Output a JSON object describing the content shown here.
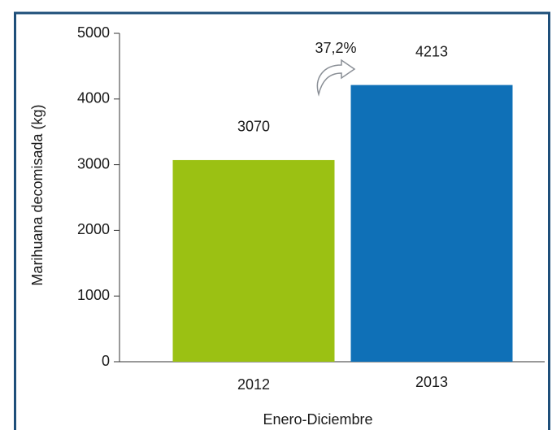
{
  "chart_data": {
    "type": "bar",
    "categories": [
      "2012",
      "2013"
    ],
    "values": [
      3070,
      4213
    ],
    "colors": [
      "#9bc113",
      "#0f70b7"
    ],
    "xlabel": "Enero-Diciembre",
    "ylabel": "Marihuana decomisada (kg)",
    "annotation": "37,2%",
    "ylim": [
      0,
      5000
    ],
    "yticks": [
      0,
      1000,
      2000,
      3000,
      4000,
      5000
    ],
    "grid": false
  }
}
